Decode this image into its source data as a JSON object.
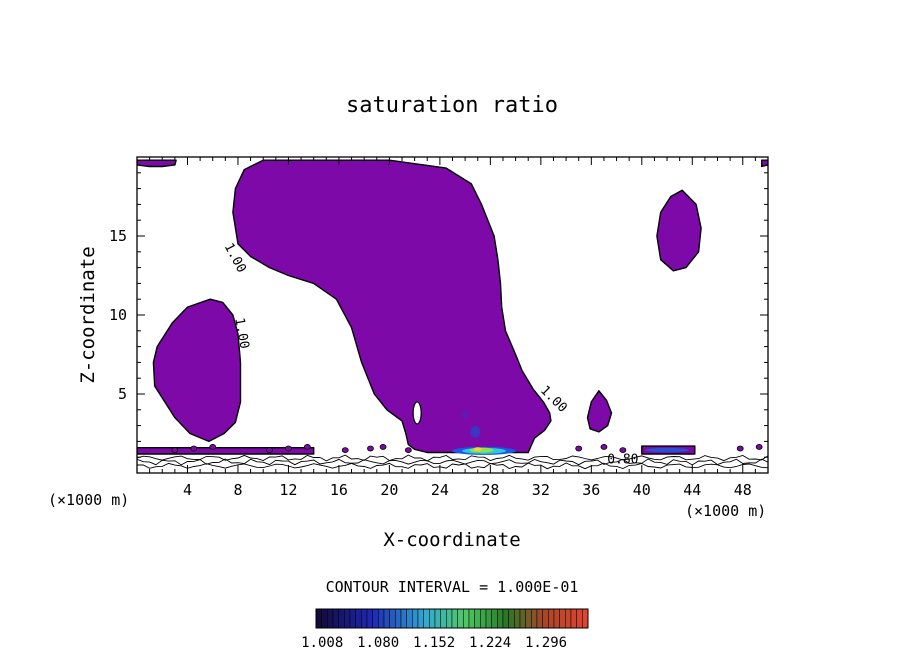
{
  "chart_data": {
    "type": "heatmap",
    "title": "saturation ratio",
    "xlabel": "X-coordinate",
    "ylabel": "Z-coordinate",
    "x_unit": "(×1000 m)",
    "x_unit_right": "(×1000 m)",
    "xlim": [
      0,
      50
    ],
    "ylim": [
      0,
      20
    ],
    "x_ticks": [
      4,
      8,
      12,
      16,
      20,
      24,
      28,
      32,
      36,
      40,
      44,
      48
    ],
    "y_ticks": [
      5,
      10,
      15
    ],
    "contour_interval_text": "CONTOUR INTERVAL = 1.000E-01",
    "colorbar": {
      "labels": [
        "1.008",
        "1.080",
        "1.152",
        "1.224",
        "1.296"
      ],
      "min": 1.0,
      "max": 1.35,
      "fill_color": "#7d0aa8"
    },
    "contour_labels": [
      {
        "text": "1.00",
        "x": 7.5,
        "z": 13.5,
        "angle": 62
      },
      {
        "text": "1.00",
        "x": 8.0,
        "z": 8.8,
        "angle": 80
      },
      {
        "text": "1.00",
        "x": 32.8,
        "z": 4.5,
        "angle": 45
      },
      {
        "text": "0.80",
        "x": 38.5,
        "z": 0.6,
        "angle": 0
      }
    ],
    "regions": [
      {
        "name": "main-plume",
        "points": [
          [
            7.6,
            16.5
          ],
          [
            7.8,
            18.0
          ],
          [
            8.5,
            19.2
          ],
          [
            10.0,
            19.8
          ],
          [
            20.0,
            19.8
          ],
          [
            24.5,
            19.3
          ],
          [
            26.5,
            18.3
          ],
          [
            27.3,
            17.0
          ],
          [
            28.3,
            15.0
          ],
          [
            28.6,
            13.5
          ],
          [
            28.8,
            12.0
          ],
          [
            28.9,
            10.5
          ],
          [
            29.2,
            9.0
          ],
          [
            30.0,
            7.5
          ],
          [
            30.5,
            6.5
          ],
          [
            31.4,
            5.3
          ],
          [
            32.2,
            4.5
          ],
          [
            32.7,
            3.8
          ],
          [
            32.8,
            3.3
          ],
          [
            32.3,
            2.7
          ],
          [
            31.5,
            2.2
          ],
          [
            31.0,
            1.3
          ],
          [
            23.0,
            1.3
          ],
          [
            22.0,
            1.5
          ],
          [
            21.5,
            1.8
          ],
          [
            21.3,
            2.5
          ],
          [
            21.0,
            3.3
          ],
          [
            19.8,
            4.0
          ],
          [
            18.8,
            5.0
          ],
          [
            17.8,
            7.0
          ],
          [
            17.0,
            9.2
          ],
          [
            15.8,
            11.0
          ],
          [
            14.0,
            12.0
          ],
          [
            12.0,
            12.5
          ],
          [
            10.5,
            13.0
          ],
          [
            9.0,
            13.7
          ],
          [
            8.0,
            14.5
          ],
          [
            7.6,
            16.5
          ]
        ]
      },
      {
        "name": "left-blob",
        "points": [
          [
            5.8,
            11.0
          ],
          [
            6.8,
            10.8
          ],
          [
            7.6,
            10.0
          ],
          [
            8.0,
            8.8
          ],
          [
            8.2,
            7.0
          ],
          [
            8.2,
            4.5
          ],
          [
            7.8,
            3.2
          ],
          [
            6.9,
            2.5
          ],
          [
            5.7,
            2.0
          ],
          [
            4.2,
            2.5
          ],
          [
            3.0,
            3.5
          ],
          [
            2.2,
            4.5
          ],
          [
            1.4,
            5.5
          ],
          [
            1.3,
            7.0
          ],
          [
            1.6,
            8.0
          ],
          [
            2.8,
            9.5
          ],
          [
            4.0,
            10.5
          ],
          [
            5.8,
            11.0
          ]
        ]
      },
      {
        "name": "right-blob",
        "points": [
          [
            43.2,
            17.9
          ],
          [
            44.3,
            17.0
          ],
          [
            44.7,
            15.5
          ],
          [
            44.5,
            14.0
          ],
          [
            43.5,
            13.0
          ],
          [
            42.5,
            12.8
          ],
          [
            41.5,
            13.5
          ],
          [
            41.2,
            15.0
          ],
          [
            41.5,
            16.5
          ],
          [
            42.3,
            17.5
          ],
          [
            43.2,
            17.9
          ]
        ]
      },
      {
        "name": "small-blob",
        "points": [
          [
            36.6,
            5.2
          ],
          [
            37.2,
            4.6
          ],
          [
            37.6,
            3.8
          ],
          [
            37.3,
            3.0
          ],
          [
            36.6,
            2.6
          ],
          [
            35.9,
            2.8
          ],
          [
            35.7,
            3.5
          ],
          [
            36.0,
            4.5
          ],
          [
            36.6,
            5.2
          ]
        ]
      },
      {
        "name": "top-left-band",
        "points": [
          [
            0,
            19.8
          ],
          [
            3.1,
            19.8
          ],
          [
            3.0,
            19.5
          ],
          [
            2.0,
            19.4
          ],
          [
            1.0,
            19.4
          ],
          [
            0,
            19.5
          ]
        ]
      },
      {
        "name": "top-right-band",
        "points": [
          [
            49.5,
            19.8
          ],
          [
            50,
            19.8
          ],
          [
            50,
            19.5
          ],
          [
            49.5,
            19.4
          ]
        ]
      },
      {
        "name": "bottom-left-band",
        "points": [
          [
            0,
            1.6
          ],
          [
            14,
            1.6
          ],
          [
            14,
            1.2
          ],
          [
            0,
            1.2
          ]
        ]
      },
      {
        "name": "bottom-right-band",
        "points": [
          [
            40,
            1.7
          ],
          [
            44.2,
            1.7
          ],
          [
            44.2,
            1.2
          ],
          [
            40,
            1.2
          ]
        ]
      }
    ]
  }
}
